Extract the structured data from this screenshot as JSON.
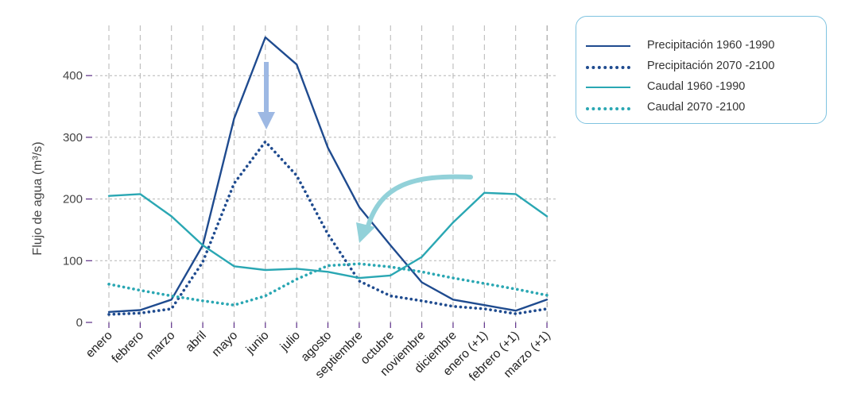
{
  "chart_data": {
    "type": "line",
    "title": "",
    "xlabel": "",
    "ylabel": "Flujo de agua (m³/s)",
    "ylim": [
      0,
      460
    ],
    "yticks": [
      0,
      100,
      200,
      300,
      400
    ],
    "categories": [
      "enero",
      "febrero",
      "marzo",
      "abril",
      "mayo",
      "junio",
      "julio",
      "agosto",
      "septiembre",
      "octubre",
      "noviembre",
      "diciembre",
      "enero (+1)",
      "febrero (+1)",
      "marzo (+1)"
    ],
    "series": [
      {
        "name": "Precipitación 1960 -1990",
        "style": "solid",
        "color": "#1f4b8f",
        "values": [
          17,
          20,
          37,
          125,
          330,
          462,
          418,
          283,
          187,
          125,
          65,
          37,
          28,
          19,
          37
        ]
      },
      {
        "name": "Precipitación 2070 -2100",
        "style": "dotted",
        "color": "#1f4b8f",
        "values": [
          13,
          15,
          22,
          98,
          225,
          293,
          238,
          143,
          67,
          43,
          35,
          26,
          22,
          14,
          22
        ]
      },
      {
        "name": "Caudal 1960 -1990",
        "style": "solid",
        "color": "#2aa7b3",
        "values": [
          205,
          208,
          172,
          125,
          91,
          85,
          87,
          82,
          72,
          76,
          106,
          162,
          210,
          208,
          172
        ]
      },
      {
        "name": "Caudal 2070 -2100",
        "style": "dotted",
        "color": "#2aa7b3",
        "values": [
          62,
          52,
          43,
          35,
          28,
          43,
          70,
          92,
          95,
          90,
          82,
          72,
          63,
          54,
          44
        ]
      }
    ],
    "legend_position": "top-right",
    "grid": true,
    "colors": {
      "axis_tick": "#5b2d86",
      "grid": "#b5b5b5",
      "arrow_blue": "#9db8e3",
      "arrow_teal": "#92d1d9"
    }
  }
}
